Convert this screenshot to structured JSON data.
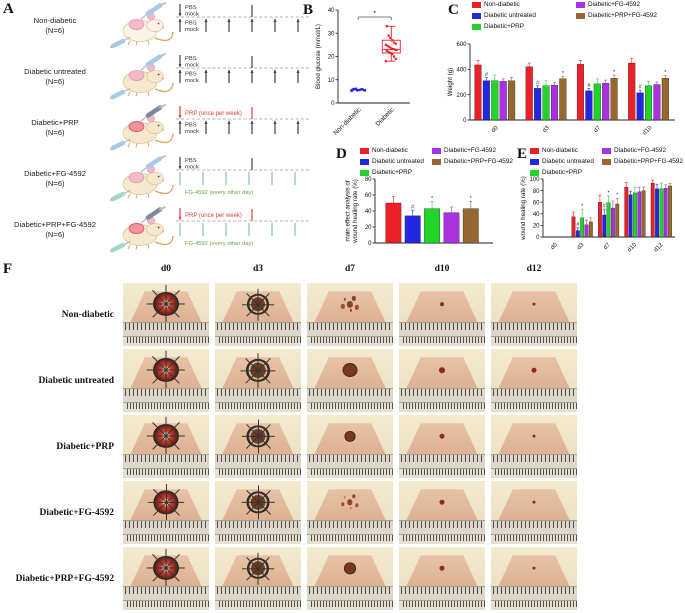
{
  "figure": {
    "panel_labels": {
      "a": "A",
      "b": "B",
      "c": "C",
      "d": "D",
      "e": "E",
      "f": "F"
    }
  },
  "colors": {
    "red": "#ec2028",
    "blue": "#2128e0",
    "green": "#21d32b",
    "purple": "#a832dd",
    "brown": "#96682f",
    "tick_dark": "#3d3d57",
    "prp_red": "#e04038",
    "fg_teal": "#82c0b6",
    "fg_green_text": "#69a23c",
    "dashed_line": "#9a9a9a"
  },
  "legend": {
    "entries": [
      {
        "label": "Non-diabetic",
        "color": "#ec2028"
      },
      {
        "label": "Diabetic untreated",
        "color": "#2128e0"
      },
      {
        "label": "Diabetic+PRP",
        "color": "#21d32b"
      },
      {
        "label": "Diabetic+FG-4592",
        "color": "#a832dd"
      },
      {
        "label": "Diabetic+PRP+FG-4592",
        "color": "#96682f"
      }
    ]
  },
  "panel_a": {
    "rows": [
      {
        "name": "Non-diabetic",
        "n": "(N=6)",
        "mouse": "pale",
        "wound": "pink",
        "syringes": {
          "top": "blue",
          "bottom": "blue"
        },
        "top": {
          "label": "PBS mock",
          "color": "dark"
        },
        "bottom": {
          "label": "PBS mock",
          "color": "dark",
          "pos": "left"
        }
      },
      {
        "name": "Diabetic untreated",
        "n": "(N=6)",
        "mouse": "tan",
        "wound": "pink",
        "syringes": {
          "top": "blue",
          "bottom": "blue"
        },
        "top": {
          "label": "PBS mock",
          "color": "dark"
        },
        "bottom": {
          "label": "PBS mock",
          "color": "dark",
          "pos": "left"
        }
      },
      {
        "name": "Diabetic+PRP",
        "n": "(N=6)",
        "mouse": "tan",
        "wound": "red",
        "syringes": {
          "top": "dark",
          "bottom": "blue"
        },
        "top": {
          "label": "PRP (once per week)",
          "color": "red"
        },
        "bottom": {
          "label": "PBS mock",
          "color": "dark",
          "pos": "left"
        }
      },
      {
        "name": "Diabetic+FG-4592",
        "n": "(N=6)",
        "mouse": "tan",
        "wound": "pink",
        "syringes": {
          "top": "blue",
          "bottom": "teal"
        },
        "top": {
          "label": "PBS mock",
          "color": "dark"
        },
        "bottom": {
          "label": "FG-4592 (every other day)",
          "color": "teal",
          "pos": "below"
        }
      },
      {
        "name": "Diabetic+PRP+FG-4592",
        "n": "(N=6)",
        "mouse": "tan",
        "wound": "red",
        "syringes": {
          "top": "dark",
          "bottom": "teal"
        },
        "top": {
          "label": "PRP (once per week)",
          "color": "red"
        },
        "bottom": {
          "label": "FG-4592 (every other day)",
          "color": "teal",
          "pos": "below"
        }
      }
    ]
  },
  "chart_data": [
    {
      "id": "B",
      "type": "box-scatter",
      "ylabel": "Blood glucose (mmol/L)",
      "ylim": [
        0,
        40
      ],
      "yticks": [
        0,
        10,
        20,
        30,
        40
      ],
      "categories": [
        "Non-diabetic",
        "Diabetic"
      ],
      "series": [
        {
          "name": "Non-diabetic",
          "color": "#2128e0",
          "center_line": 5.7,
          "points": [
            5.2,
            5.5,
            5.8,
            6.0,
            5.6,
            5.4,
            6.1,
            5.9,
            5.7
          ]
        },
        {
          "name": "Diabetic",
          "color": "#ec2028",
          "box": {
            "lo": 18,
            "q1": 21.5,
            "median": 23,
            "q3": 27,
            "hi": 33
          },
          "points": [
            18,
            19,
            20,
            21,
            21.5,
            22,
            22.5,
            22.8,
            23,
            23.2,
            23.5,
            24,
            24.5,
            25,
            25.5,
            26,
            27,
            28,
            29,
            33
          ]
        }
      ],
      "significance": {
        "label": "*",
        "between": [
          0,
          1
        ],
        "height": 37
      }
    },
    {
      "id": "C",
      "type": "bar",
      "ylabel": "Weight (g)",
      "ylim": [
        0,
        600
      ],
      "yticks": [
        0,
        200,
        400,
        600
      ],
      "categories": [
        "d0",
        "d3",
        "d7",
        "d10"
      ],
      "legend_position": "top",
      "series": [
        {
          "name": "Non-diabetic",
          "color": "#ec2028",
          "values": [
            435,
            420,
            440,
            450
          ],
          "errors": [
            35,
            30,
            30,
            35
          ]
        },
        {
          "name": "Diabetic untreated",
          "color": "#2128e0",
          "values": [
            310,
            250,
            230,
            215
          ],
          "errors": [
            25,
            20,
            20,
            20
          ]
        },
        {
          "name": "Diabetic+PRP",
          "color": "#21d32b",
          "values": [
            310,
            270,
            285,
            270
          ],
          "errors": [
            45,
            40,
            40,
            35
          ]
        },
        {
          "name": "Diabetic+FG-4592",
          "color": "#a832dd",
          "values": [
            305,
            275,
            290,
            280
          ],
          "errors": [
            20,
            20,
            25,
            20
          ]
        },
        {
          "name": "Diabetic+PRP+FG-4592",
          "color": "#96682f",
          "values": [
            310,
            325,
            330,
            330
          ],
          "errors": [
            25,
            20,
            25,
            20
          ]
        }
      ],
      "annotations": [
        {
          "category": "d0",
          "series": "Diabetic untreated",
          "mark": "#"
        },
        {
          "category": "d3",
          "series": "Diabetic untreated",
          "mark": "#"
        },
        {
          "category": "d7",
          "series": "Diabetic untreated",
          "mark": "#"
        },
        {
          "category": "d10",
          "series": "Diabetic untreated",
          "mark": "#"
        },
        {
          "category": "d3",
          "series": "Diabetic+PRP+FG-4592",
          "mark": "*"
        },
        {
          "category": "d7",
          "series": "Diabetic+PRP+FG-4592",
          "mark": "*"
        },
        {
          "category": "d10",
          "series": "Diabetic+PRP+FG-4592",
          "mark": "*"
        }
      ]
    },
    {
      "id": "D",
      "type": "bar",
      "ylabel_lines": [
        "main effect analysis of",
        "wound healing rate (%)"
      ],
      "ylim": [
        0,
        80
      ],
      "yticks": [
        0,
        20,
        40,
        60,
        80
      ],
      "categories": [
        ""
      ],
      "legend_position": "top",
      "series": [
        {
          "name": "Non-diabetic",
          "color": "#ec2028",
          "values": [
            50
          ],
          "errors": [
            8
          ]
        },
        {
          "name": "Diabetic untreated",
          "color": "#2128e0",
          "values": [
            34
          ],
          "errors": [
            7
          ]
        },
        {
          "name": "Diabetic+PRP",
          "color": "#21d32b",
          "values": [
            43
          ],
          "errors": [
            9
          ]
        },
        {
          "name": "Diabetic+FG-4592",
          "color": "#a832dd",
          "values": [
            38
          ],
          "errors": [
            7
          ]
        },
        {
          "name": "Diabetic+PRP+FG-4592",
          "color": "#96682f",
          "values": [
            43
          ],
          "errors": [
            9
          ]
        }
      ],
      "annotations": [
        {
          "category": "",
          "series": "Diabetic untreated",
          "mark": "#"
        },
        {
          "category": "",
          "series": "Diabetic+PRP",
          "mark": "*"
        },
        {
          "category": "",
          "series": "Diabetic+PRP+FG-4592",
          "mark": "*"
        }
      ]
    },
    {
      "id": "E",
      "type": "bar",
      "ylabel": "wound healing rate (%)",
      "ylim": [
        0,
        100
      ],
      "yticks": [
        0,
        20,
        40,
        60,
        80,
        100
      ],
      "categories": [
        "d0",
        "d3",
        "d7",
        "d10",
        "d12"
      ],
      "legend_position": "top",
      "series": [
        {
          "name": "Non-diabetic",
          "color": "#ec2028",
          "values": [
            0,
            35,
            60,
            86,
            93
          ],
          "errors": [
            0,
            8,
            12,
            8,
            5
          ]
        },
        {
          "name": "Diabetic untreated",
          "color": "#2128e0",
          "values": [
            0,
            11,
            38,
            73,
            83
          ],
          "errors": [
            0,
            5,
            10,
            6,
            8
          ]
        },
        {
          "name": "Diabetic+PRP",
          "color": "#21d32b",
          "values": [
            0,
            33,
            59,
            76,
            83
          ],
          "errors": [
            0,
            15,
            12,
            10,
            10
          ]
        },
        {
          "name": "Diabetic+FG-4592",
          "color": "#a832dd",
          "values": [
            0,
            21,
            50,
            78,
            84
          ],
          "errors": [
            0,
            8,
            12,
            8,
            6
          ]
        },
        {
          "name": "Diabetic+PRP+FG-4592",
          "color": "#96682f",
          "values": [
            0,
            26,
            57,
            80,
            88
          ],
          "errors": [
            0,
            7,
            10,
            6,
            4
          ]
        }
      ],
      "annotations": [
        {
          "category": "d3",
          "series": "Diabetic untreated",
          "mark": "#"
        },
        {
          "category": "d3",
          "series": "Diabetic+PRP",
          "mark": "*"
        },
        {
          "category": "d7",
          "series": "Diabetic untreated",
          "mark": "#"
        },
        {
          "category": "d7",
          "series": "Diabetic+PRP",
          "mark": "*"
        },
        {
          "category": "d7",
          "series": "Diabetic+PRP+FG-4592",
          "mark": "*"
        }
      ]
    }
  ],
  "panel_f": {
    "columns": [
      "d0",
      "d3",
      "d7",
      "d10",
      "d12"
    ],
    "rows": [
      {
        "label": "Non-diabetic",
        "wounds": [
          {
            "t": "ring-red",
            "s": 24
          },
          {
            "t": "ring-scab",
            "s": 20
          },
          {
            "t": "dots",
            "s": 14
          },
          {
            "t": "dot",
            "s": 4
          },
          {
            "t": "dot",
            "s": 3
          }
        ]
      },
      {
        "label": "Diabetic untreated",
        "wounds": [
          {
            "t": "ring-red",
            "s": 24
          },
          {
            "t": "ring-scab",
            "s": 22
          },
          {
            "t": "scab",
            "s": 13
          },
          {
            "t": "dot",
            "s": 6
          },
          {
            "t": "dot",
            "s": 5
          }
        ]
      },
      {
        "label": "Diabetic+PRP",
        "wounds": [
          {
            "t": "ring-red",
            "s": 24
          },
          {
            "t": "ring-scab",
            "s": 21
          },
          {
            "t": "scab",
            "s": 9
          },
          {
            "t": "dot",
            "s": 5
          },
          {
            "t": "dot",
            "s": 3
          }
        ]
      },
      {
        "label": "Diabetic+FG-4592",
        "wounds": [
          {
            "t": "ring-red",
            "s": 23
          },
          {
            "t": "ring-scab",
            "s": 21
          },
          {
            "t": "dots",
            "s": 12
          },
          {
            "t": "dot",
            "s": 5
          },
          {
            "t": "dot",
            "s": 3
          }
        ]
      },
      {
        "label": "Diabetic+PRP+FG-4592",
        "wounds": [
          {
            "t": "ring-red",
            "s": 24
          },
          {
            "t": "ring-scab",
            "s": 20
          },
          {
            "t": "scab",
            "s": 10
          },
          {
            "t": "dot",
            "s": 5
          },
          {
            "t": "dot",
            "s": 3
          }
        ]
      }
    ]
  }
}
